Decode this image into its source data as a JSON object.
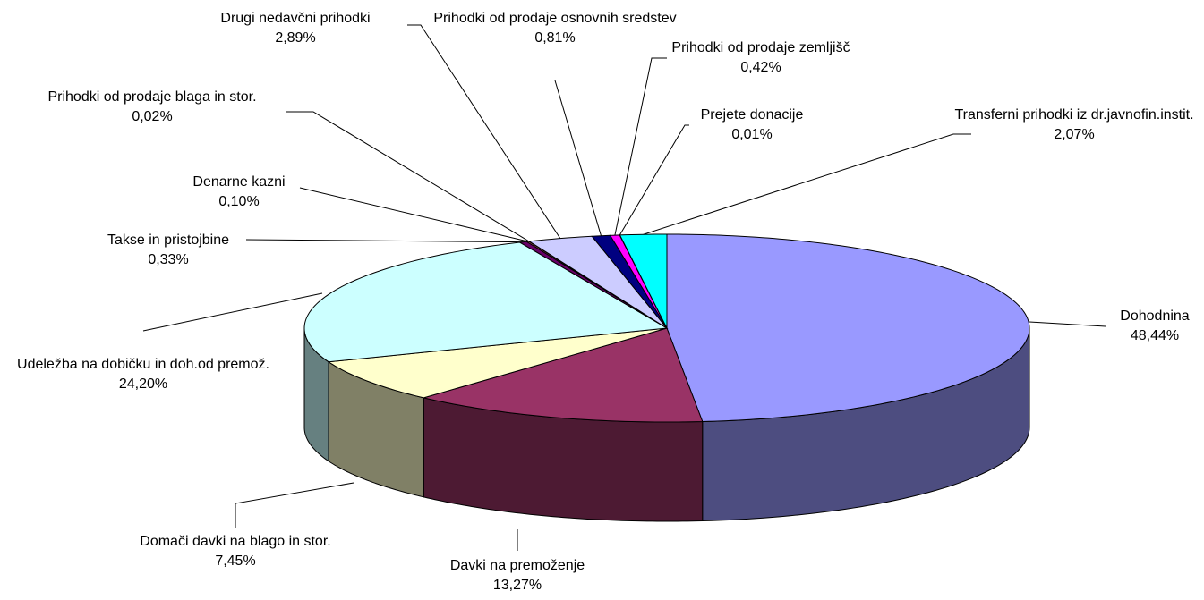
{
  "chart_data": {
    "type": "pie3d",
    "categories": [
      "Dohodnina",
      "Davki na premoženje",
      "Domači davki na blago in stor.",
      "Udeležba na dobičku in doh.od premož.",
      "Takse in pristojbine",
      "Denarne kazni",
      "Prihodki od prodaje blaga in stor.",
      "Drugi nedavčni prihodki",
      "Prihodki od prodaje osnovnih sredstev",
      "Prihodki od prodaje zemljišč",
      "Prejete donacije",
      "Transferni prihodki iz dr.javnofin.instit."
    ],
    "values": [
      48.44,
      13.27,
      7.45,
      24.2,
      0.33,
      0.1,
      0.02,
      2.89,
      0.81,
      0.42,
      0.01,
      2.07
    ],
    "value_labels": [
      "48,44%",
      "13,27%",
      "7,45%",
      "24,20%",
      "0,33%",
      "0,10%",
      "0,02%",
      "2,89%",
      "0,81%",
      "0,42%",
      "0,01%",
      "2,07%"
    ],
    "colors": [
      "#9999ff",
      "#993366",
      "#ffffcc",
      "#ccffff",
      "#660066",
      "#ff8080",
      "#0066cc",
      "#ccccff",
      "#000080",
      "#ff00ff",
      "#ffff00",
      "#00ffff"
    ]
  }
}
